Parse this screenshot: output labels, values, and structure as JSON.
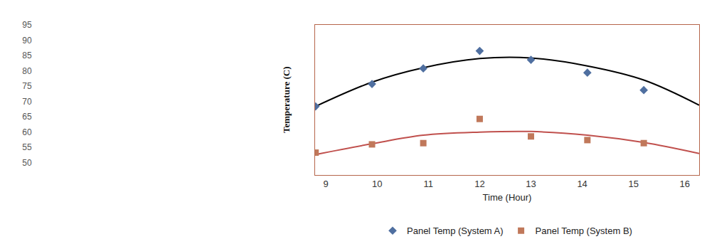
{
  "chart_data": {
    "type": "scatter",
    "x_label": "Time (Hour)",
    "y_label": "Temperature (C)",
    "xlim": [
      8.79,
      16.28
    ],
    "xticks": [
      9,
      10,
      11,
      12,
      13,
      14,
      15,
      16
    ],
    "ylim": [
      46,
      95
    ],
    "yticks": [
      50,
      55,
      60,
      65,
      70,
      75,
      80,
      85,
      90,
      95
    ],
    "grid": false,
    "legend": "bottom",
    "series": [
      {
        "name": "Panel Temp (System A)",
        "color": "#4f6fa0",
        "marker": "diamond",
        "x": [
          8.8,
          9.9,
          10.9,
          12.0,
          13.0,
          14.1,
          15.2
        ],
        "values": [
          68.4,
          75.7,
          80.8,
          86.5,
          83.6,
          79.4,
          73.7
        ],
        "trend_color": "#000000",
        "trend_x": [
          8.8,
          9.9,
          10.9,
          12.0,
          13.0,
          14.1,
          15.2,
          16.28
        ],
        "trend": [
          68.4,
          76.3,
          81.0,
          84.0,
          84.2,
          81.6,
          77.0,
          68.8
        ]
      },
      {
        "name": "Panel Temp (System B)",
        "color": "#c0785a",
        "marker": "square",
        "x": [
          8.8,
          9.9,
          10.9,
          12.0,
          13.0,
          14.1,
          15.2
        ],
        "values": [
          53.3,
          56.0,
          56.4,
          64.3,
          58.6,
          57.4,
          56.4
        ],
        "trend_color": "#c0504d",
        "trend_x": [
          8.8,
          9.9,
          10.9,
          12.0,
          13.0,
          14.1,
          15.2,
          16.28
        ],
        "trend": [
          52.7,
          56.2,
          59.0,
          60.0,
          60.2,
          59.0,
          56.6,
          53.0
        ]
      }
    ]
  }
}
